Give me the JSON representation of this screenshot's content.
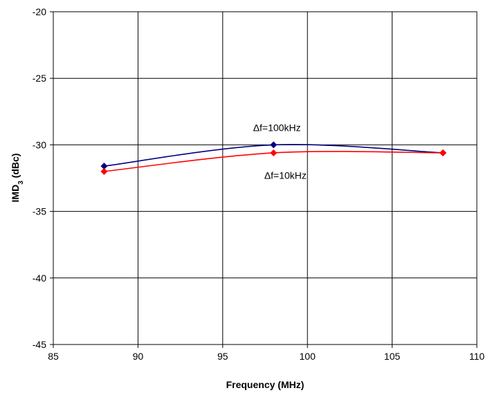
{
  "chart_data": {
    "type": "line",
    "title": "",
    "xlabel": "Frequency (MHz)",
    "ylabel": {
      "main": "IMD",
      "sub": "3",
      "rest": " (dBc)"
    },
    "xlim": [
      85,
      110
    ],
    "ylim": [
      -45,
      -20
    ],
    "x_ticks": [
      85,
      90,
      95,
      100,
      105,
      110
    ],
    "y_ticks": [
      -45,
      -40,
      -35,
      -30,
      -25,
      -20
    ],
    "grid": true,
    "series": [
      {
        "color": "#000080",
        "marker": "diamond",
        "points": [
          [
            88,
            -31.6
          ],
          [
            98,
            -30.0
          ],
          [
            108,
            -30.6
          ]
        ]
      },
      {
        "color": "#ff0000",
        "marker": "diamond",
        "points": [
          [
            88,
            -32.0
          ],
          [
            98,
            -30.6
          ],
          [
            108,
            -30.6
          ]
        ]
      }
    ],
    "annotations": [
      {
        "text": "Δf=100kHz",
        "x": 98.2,
        "y": -28.7
      },
      {
        "text": "Δf=10kHz",
        "x": 98.7,
        "y": -32.3
      }
    ]
  }
}
